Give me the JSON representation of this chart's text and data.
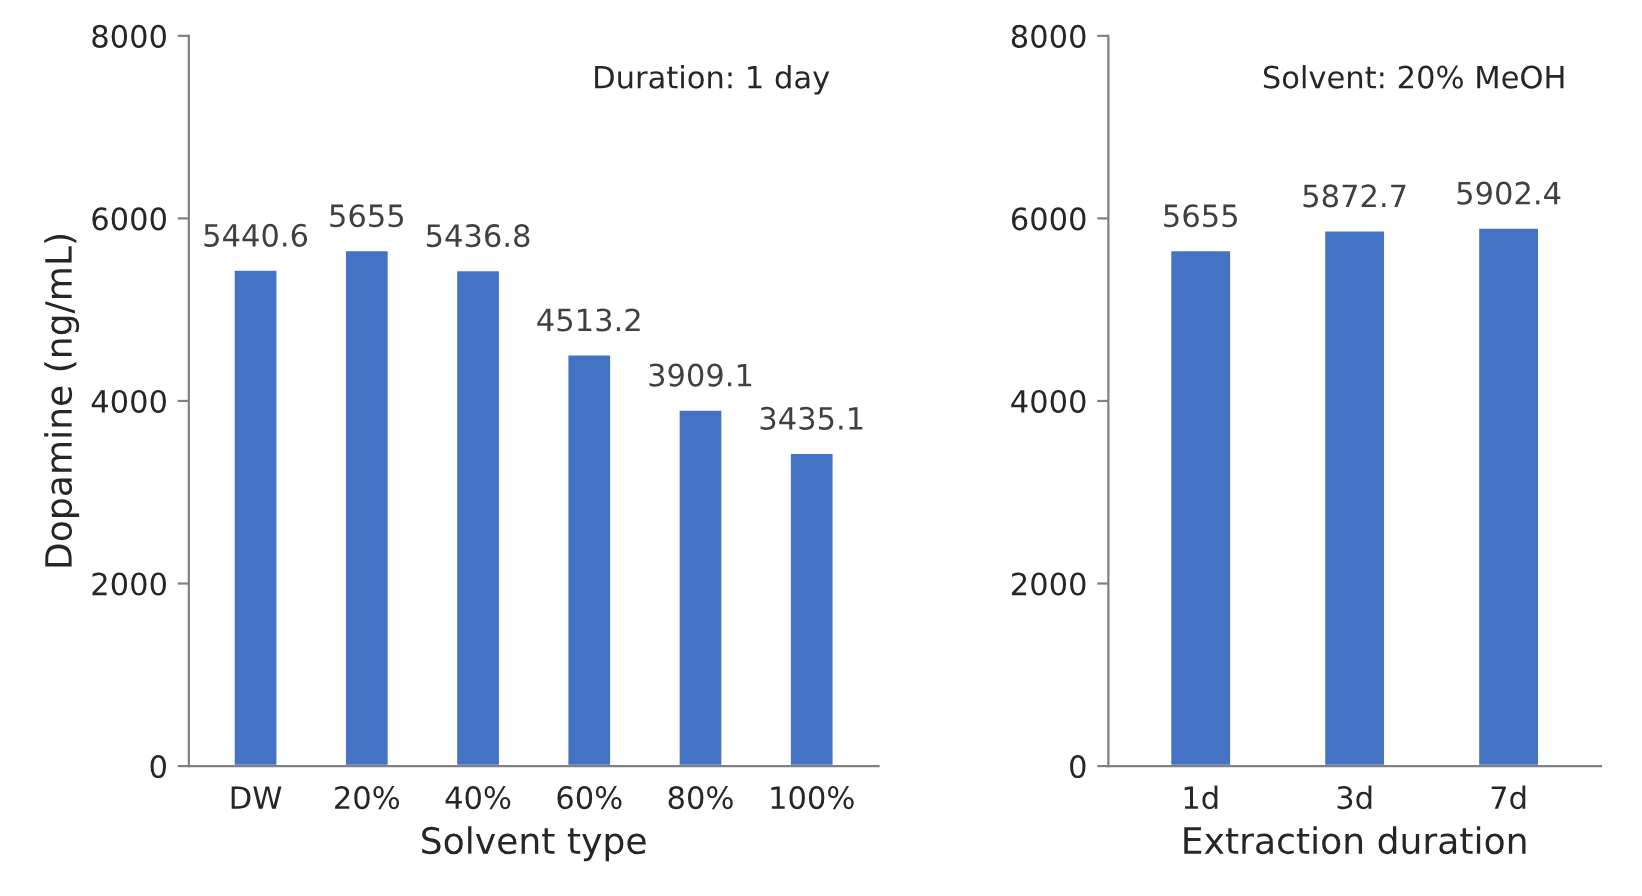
{
  "chart_data": [
    {
      "type": "bar",
      "xlabel": "Solvent type",
      "ylabel": "Dopamine (ng/mL)",
      "categories": [
        "DW",
        "20%",
        "40%",
        "60%",
        "80%",
        "100%"
      ],
      "values": [
        5440.6,
        5655,
        5436.8,
        4513.2,
        3909.1,
        3435.1
      ],
      "color": "#4472c4",
      "ylim": [
        0,
        8000
      ],
      "yticks": [
        0,
        2000,
        4000,
        6000,
        8000
      ],
      "data_labels": true,
      "annotations": [
        "Duration: 1 day"
      ]
    },
    {
      "type": "bar",
      "xlabel": "Extraction duration",
      "categories": [
        "1d",
        "3d",
        "7d"
      ],
      "values": [
        5655,
        5872.7,
        5902.4
      ],
      "color": "#4472c4",
      "ylim": [
        0,
        8000
      ],
      "yticks": [
        0,
        2000,
        4000,
        6000,
        8000
      ],
      "data_labels": true,
      "annotations": [
        "Solvent: 20% MeOH"
      ]
    }
  ]
}
